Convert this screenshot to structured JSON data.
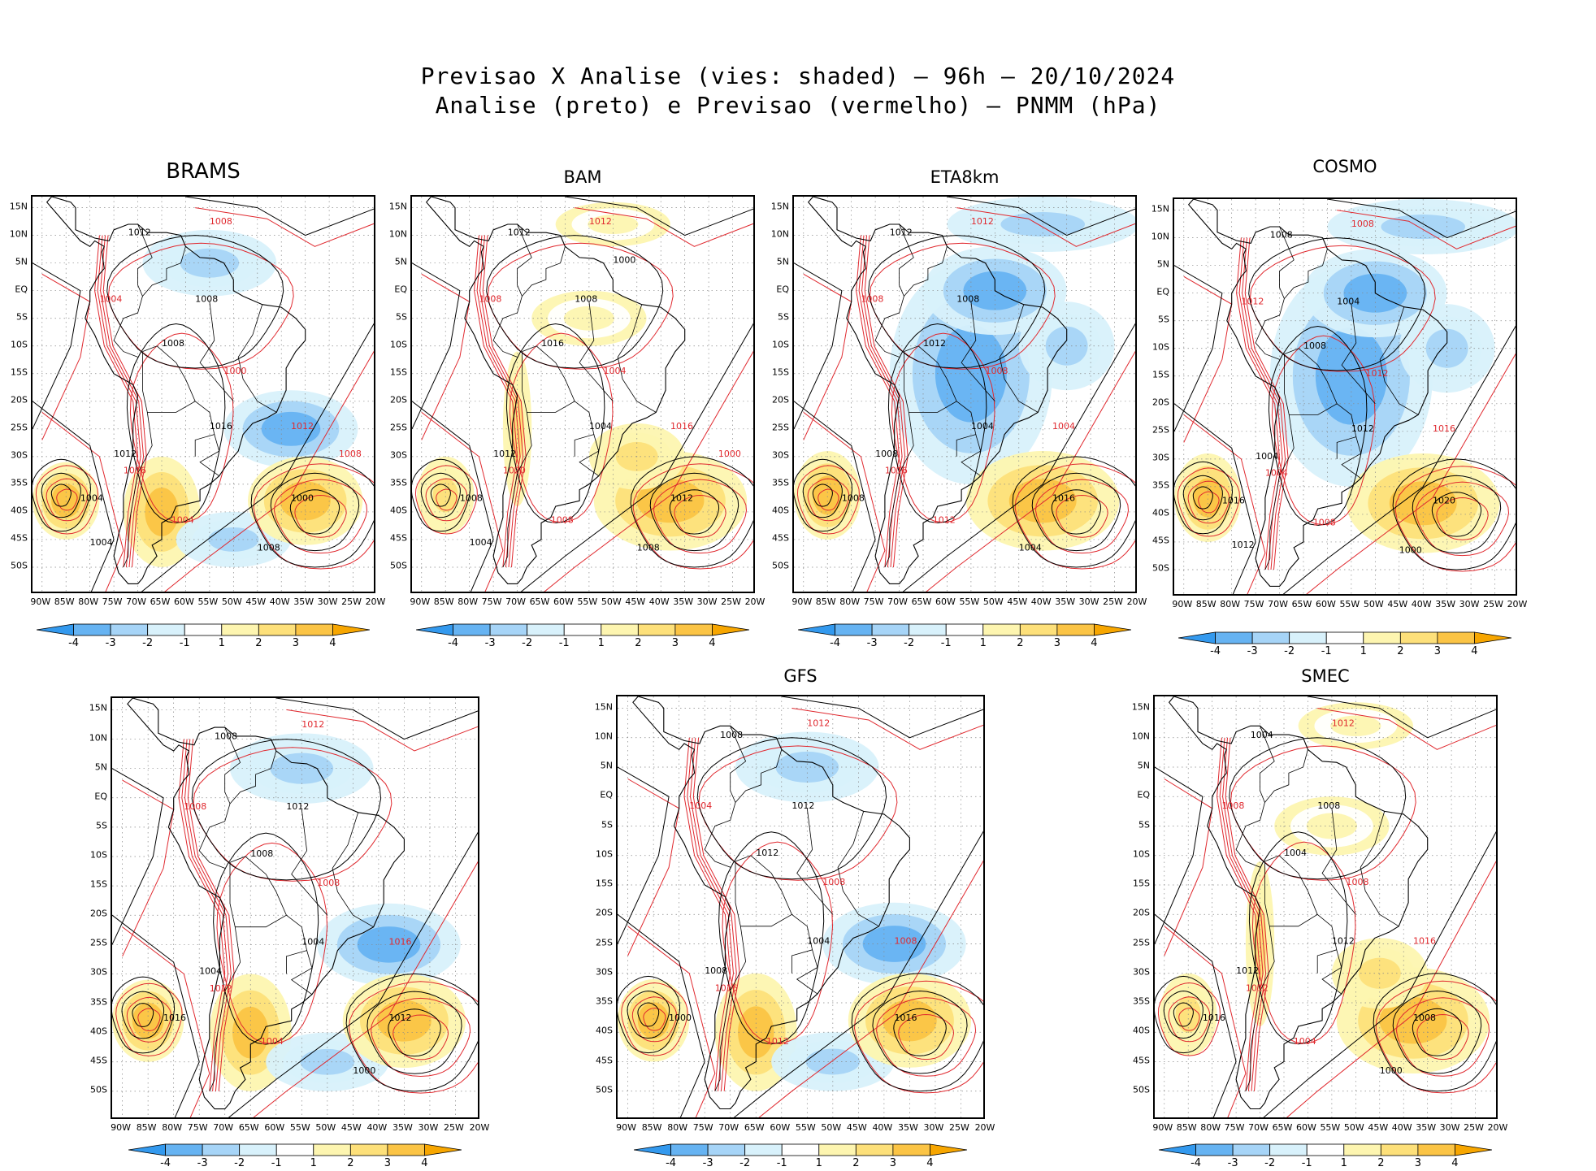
{
  "header": {
    "line1": "Previsao X Analise (vies: shaded) — 96h — 20/10/2024",
    "line2": "Analise (preto) e Previsao (vermelho) — PNMM (hPa)"
  },
  "lat_ticks": [
    "15N",
    "10N",
    "5N",
    "EQ",
    "5S",
    "10S",
    "15S",
    "20S",
    "25S",
    "30S",
    "35S",
    "40S",
    "45S",
    "50S"
  ],
  "lon_ticks": [
    "90W",
    "85W",
    "80W",
    "75W",
    "70W",
    "65W",
    "60W",
    "55W",
    "50W",
    "45W",
    "40W",
    "35W",
    "30W",
    "25W",
    "20W"
  ],
  "colorbar": {
    "labels": [
      "-4",
      "-3",
      "-2",
      "-1",
      "1",
      "2",
      "3",
      "4"
    ],
    "colors": [
      "#3399ee",
      "#66b3f2",
      "#a6d4f7",
      "#d8f1fb",
      "#ffffff",
      "#fdf5b0",
      "#fde07a",
      "#fbc445",
      "#f7a600"
    ]
  },
  "colors": {
    "analysis_contour": "#000000",
    "forecast_contour": "#e0282e",
    "coastline": "#000000"
  },
  "panels": [
    {
      "model": "BRAMS",
      "bias": "mixed",
      "labels_black": [
        "1008",
        "1012",
        "1016",
        "1004",
        "1000",
        "1008",
        "1012",
        "1008",
        "1004"
      ],
      "labels_red": [
        "1008",
        "1004",
        "1012",
        "1016",
        "1004",
        "1000",
        "1008"
      ]
    },
    {
      "model": "BAM",
      "bias": "positive",
      "labels_black": [
        "1008",
        "1012",
        "1004",
        "1008",
        "1012",
        "1016",
        "1012",
        "1008",
        "1004",
        "1000"
      ],
      "labels_red": [
        "1012",
        "1008",
        "1016",
        "1020",
        "1008",
        "1004",
        "1000"
      ]
    },
    {
      "model": "ETA8km",
      "bias": "negative",
      "labels_black": [
        "1008",
        "1012",
        "1004",
        "1008",
        "1016",
        "1012",
        "1008",
        "1004"
      ],
      "labels_red": [
        "1012",
        "1008",
        "1004",
        "1016",
        "1012",
        "1008"
      ]
    },
    {
      "model": "COSMO",
      "bias": "negative",
      "labels_black": [
        "1004",
        "1008",
        "1012",
        "1016",
        "1020",
        "1008",
        "1004",
        "1000",
        "1012"
      ],
      "labels_red": [
        "1008",
        "1012",
        "1016",
        "1004",
        "1008",
        "1012"
      ]
    },
    {
      "model": "",
      "bias": "mixed",
      "labels_black": [
        "1012",
        "1008",
        "1004",
        "1016",
        "1012",
        "1008",
        "1004",
        "1000"
      ],
      "labels_red": [
        "1012",
        "1008",
        "1016",
        "1012",
        "1004",
        "1008"
      ]
    },
    {
      "model": "GFS",
      "bias": "mixed",
      "labels_black": [
        "1012",
        "1008",
        "1004",
        "1000",
        "1016",
        "1012",
        "1008"
      ],
      "labels_red": [
        "1012",
        "1004",
        "1008",
        "1016",
        "1012",
        "1008"
      ]
    },
    {
      "model": "SMEC",
      "bias": "positive",
      "labels_black": [
        "1008",
        "1004",
        "1012",
        "1016",
        "1008",
        "1004",
        "1012",
        "1000"
      ],
      "labels_red": [
        "1012",
        "1008",
        "1016",
        "1012",
        "1004",
        "1008"
      ]
    }
  ]
}
